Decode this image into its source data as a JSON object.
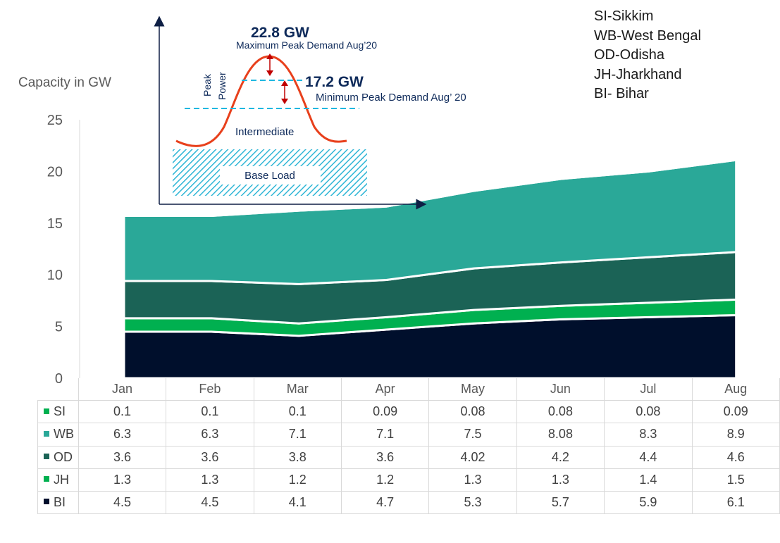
{
  "chart_data": {
    "type": "area",
    "stacked": true,
    "ylabel": "Capacity in GW",
    "ylim": [
      0,
      25
    ],
    "yticks": [
      0,
      5,
      10,
      15,
      20,
      25
    ],
    "categories": [
      "Jan",
      "Feb",
      "Mar",
      "Apr",
      "May",
      "Jun",
      "Jul",
      "Aug"
    ],
    "series": [
      {
        "key": "BI",
        "name": "BI",
        "color": "#000f2c",
        "values": [
          4.5,
          4.5,
          4.1,
          4.7,
          5.3,
          5.7,
          5.9,
          6.1
        ]
      },
      {
        "key": "JH",
        "name": "JH",
        "color": "#00b050",
        "values": [
          1.3,
          1.3,
          1.2,
          1.2,
          1.3,
          1.3,
          1.4,
          1.5
        ]
      },
      {
        "key": "OD",
        "name": "OD",
        "color": "#1b6356",
        "values": [
          3.6,
          3.6,
          3.8,
          3.6,
          4.02,
          4.2,
          4.4,
          4.6
        ]
      },
      {
        "key": "WB",
        "name": "WB",
        "color": "#2aa898",
        "values": [
          6.3,
          6.3,
          7.1,
          7.1,
          7.5,
          8.08,
          8.3,
          8.9
        ]
      },
      {
        "key": "SI",
        "name": "SI",
        "color": "#00b050",
        "values": [
          0.1,
          0.1,
          0.1,
          0.09,
          0.08,
          0.08,
          0.08,
          0.09
        ]
      }
    ],
    "table_row_order": [
      "SI",
      "WB",
      "OD",
      "JH",
      "BI"
    ],
    "table_text": {
      "SI": [
        "0.1",
        "0.1",
        "0.1",
        "0.09",
        "0.08",
        "0.08",
        "0.08",
        "0.09"
      ],
      "WB": [
        "6.3",
        "6.3",
        "7.1",
        "7.1",
        "7.5",
        "8.08",
        "8.3",
        "8.9"
      ],
      "OD": [
        "3.6",
        "3.6",
        "3.8",
        "3.6",
        "4.02",
        "4.2",
        "4.4",
        "4.6"
      ],
      "JH": [
        "1.3",
        "1.3",
        "1.2",
        "1.2",
        "1.3",
        "1.3",
        "1.4",
        "1.5"
      ],
      "BI": [
        "4.5",
        "4.5",
        "4.1",
        "4.7",
        "5.3",
        "5.7",
        "5.9",
        "6.1"
      ]
    },
    "table_key_colors": {
      "SI": "#00b050",
      "WB": "#2aa898",
      "OD": "#1b6356",
      "JH": "#00b050",
      "BI": "#000f2c"
    }
  },
  "legend": [
    "SI-Sikkim",
    "WB-West Bengal",
    "OD-Odisha",
    "JH-Jharkhand",
    "BI- Bihar"
  ],
  "inset": {
    "max_value": "22.8 GW",
    "max_label": "Maximum Peak Demand Aug’20",
    "min_value": "17.2 GW",
    "min_label": "Minimum Peak Demand Aug’ 20",
    "peak_power_label_1": "Peak",
    "peak_power_label_2": "Power",
    "intermediate_label": "Intermediate",
    "base_load_label": "Base Load",
    "accent_text_color": "#0e2a5a",
    "curve_color": "#e8401c",
    "dash_color": "#1fb8e0",
    "hatch_color": "#2fb6d6"
  }
}
